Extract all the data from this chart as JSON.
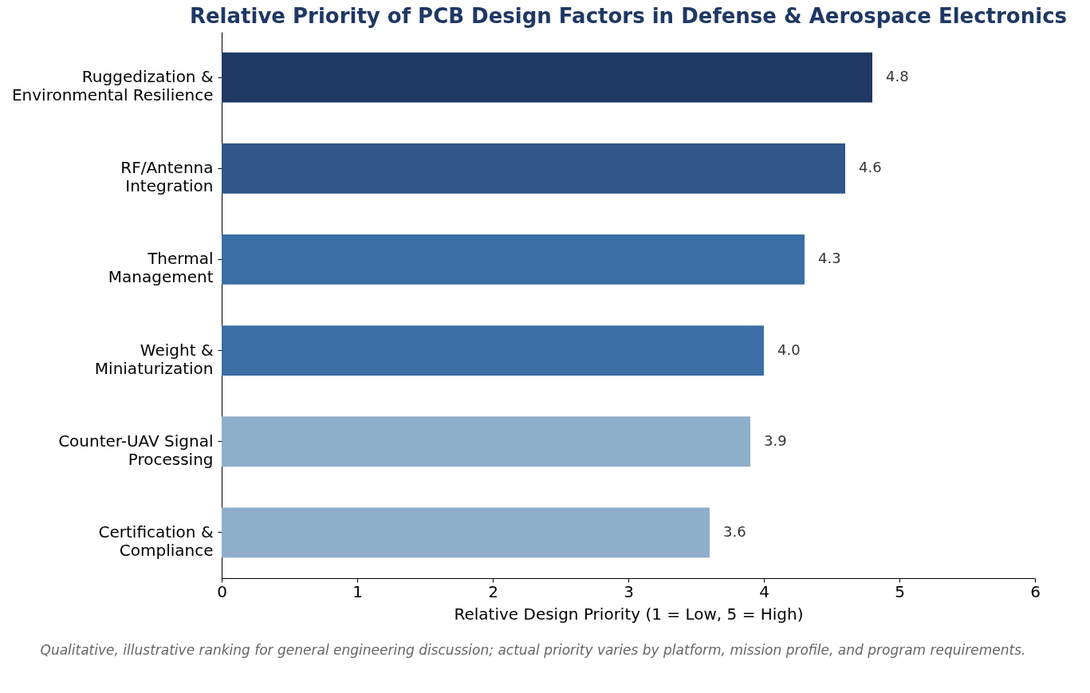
{
  "chart_data": {
    "type": "bar",
    "orientation": "horizontal",
    "title": "Relative Priority of PCB Design Factors in Defense & Aerospace Electronics",
    "xlabel": "Relative Design Priority (1 = Low, 5 = High)",
    "categories": [
      "Ruggedization &\nEnvironmental Resilience",
      "RF/Antenna\nIntegration",
      "Thermal\nManagement",
      "Weight &\nMiniaturization",
      "Counter-UAV Signal\nProcessing",
      "Certification &\nCompliance"
    ],
    "values": [
      4.8,
      4.6,
      4.3,
      4.0,
      3.9,
      3.6
    ],
    "colors": [
      "#1f3864",
      "#2f5789",
      "#3a6ea5",
      "#3a6ea5",
      "#8eaec9",
      "#8eaec9"
    ],
    "xlim": [
      0,
      6
    ],
    "xticks": [
      0,
      1,
      2,
      3,
      4,
      5,
      6
    ],
    "value_labels": [
      "4.8",
      "4.6",
      "4.3",
      "4.0",
      "3.9",
      "3.6"
    ],
    "grid": false,
    "annotations": [
      "Qualitative, illustrative ranking for general engineering discussion; actual priority varies by platform, mission profile, and program requirements."
    ]
  }
}
